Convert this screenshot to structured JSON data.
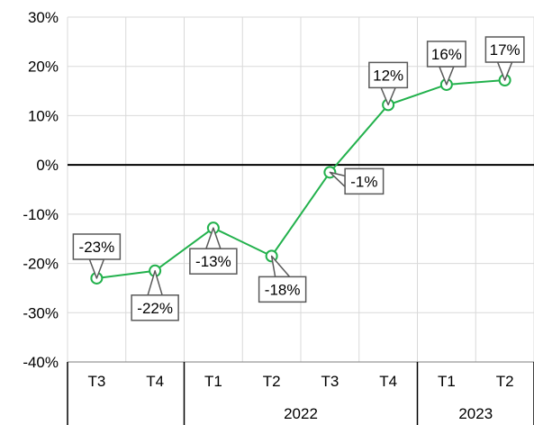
{
  "chart_data": {
    "type": "line",
    "title": "",
    "xlabel": "",
    "ylabel": "",
    "categories": [
      "T3",
      "T4",
      "T1",
      "T2",
      "T3",
      "T4",
      "T1",
      "T2"
    ],
    "groups": [
      {
        "label": "",
        "start": 0,
        "end": 1
      },
      {
        "label": "2022",
        "start": 2,
        "end": 5
      },
      {
        "label": "2023",
        "start": 6,
        "end": 7
      }
    ],
    "series": [
      {
        "values": [
          -23,
          -21.5,
          -12.8,
          -18.5,
          -1.5,
          12.2,
          16.3,
          17.2
        ],
        "labels": [
          "-23%",
          "-22%",
          "-13%",
          "-18%",
          "-1%",
          "12%",
          "16%",
          "17%"
        ],
        "color": "#22b14c"
      }
    ],
    "ylim": [
      -40,
      30
    ],
    "yticks": [
      30,
      20,
      10,
      0,
      -10,
      -20,
      -30,
      -40
    ],
    "ytick_labels": [
      "30%",
      "20%",
      "10%",
      "0%",
      "-10%",
      "-20%",
      "-30%",
      "-40%"
    ],
    "grid": true,
    "legend": "none"
  }
}
